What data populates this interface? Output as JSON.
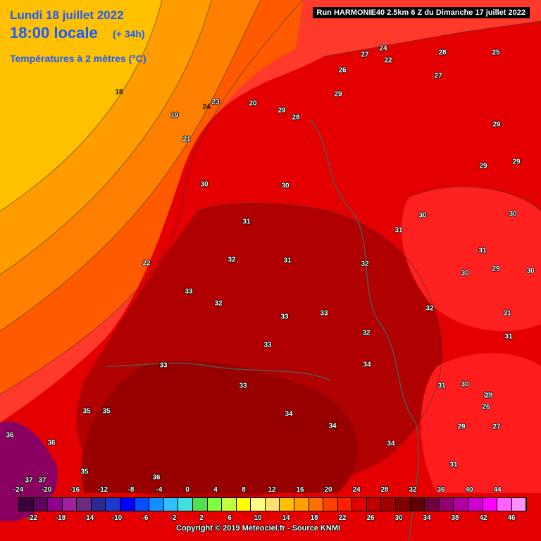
{
  "header": {
    "date": "Lundi 18 juillet 2022",
    "time": "18:00 locale",
    "offset": "(+ 34h)",
    "variable": "Températures à 2 mètres (°C)",
    "run": "Run HARMONIE40 2.5km 6 Z du Dimanche 17 juillet 2022"
  },
  "copyright": "Copyright © 2019 Meteociel.fr - Source KNMI",
  "colors": {
    "sea_cold": "#ffc000",
    "sea_mid": "#ff8c00",
    "land_hot": "#c00000",
    "land_very_hot": "#900000",
    "purple": "#800080",
    "title": "#1a5bff"
  },
  "scale": {
    "top_ticks": [
      "-24",
      "-20",
      "-16",
      "-12",
      "-8",
      "-4",
      "0",
      "4",
      "8",
      "12",
      "16",
      "20",
      "24",
      "28",
      "32",
      "36",
      "40",
      "44"
    ],
    "bottom_ticks": [
      "-22",
      "-18",
      "-14",
      "-10",
      "-6",
      "-2",
      "2",
      "6",
      "10",
      "14",
      "18",
      "22",
      "26",
      "30",
      "34",
      "38",
      "42",
      "46"
    ],
    "colors": [
      "#3a003a",
      "#600060",
      "#900090",
      "#a020a0",
      "#6a2a80",
      "#2a2a90",
      "#1c3ad0",
      "#0000ff",
      "#0050ff",
      "#1090ff",
      "#30c0ff",
      "#40e0e0",
      "#50e050",
      "#80ff40",
      "#c0ff40",
      "#ffff00",
      "#ffff80",
      "#ffe070",
      "#ffc000",
      "#ffa000",
      "#ff7000",
      "#ff4000",
      "#ff2000",
      "#e00000",
      "#c00000",
      "#a00000",
      "#800000",
      "#600000",
      "#700040",
      "#900070",
      "#b000a0",
      "#d000d0",
      "#ff00ff",
      "#ff60ff",
      "#ff90ff"
    ]
  },
  "temperature_labels": [
    {
      "t": "18"
    },
    {
      "t": "19"
    },
    {
      "t": "20"
    },
    {
      "t": "21"
    },
    {
      "t": "22"
    },
    {
      "t": "22"
    },
    {
      "t": "23"
    },
    {
      "t": "24"
    },
    {
      "t": "26"
    },
    {
      "t": "27"
    },
    {
      "t": "27"
    },
    {
      "t": "28"
    },
    {
      "t": "28"
    },
    {
      "t": "29"
    },
    {
      "t": "29"
    },
    {
      "t": "29"
    },
    {
      "t": "29"
    },
    {
      "t": "30"
    },
    {
      "t": "30"
    },
    {
      "t": "30"
    },
    {
      "t": "31"
    },
    {
      "t": "31"
    },
    {
      "t": "31"
    },
    {
      "t": "31"
    },
    {
      "t": "32"
    },
    {
      "t": "32"
    },
    {
      "t": "32"
    },
    {
      "t": "33"
    },
    {
      "t": "33"
    },
    {
      "t": "33"
    },
    {
      "t": "33"
    },
    {
      "t": "34"
    },
    {
      "t": "34"
    },
    {
      "t": "34"
    },
    {
      "t": "35"
    },
    {
      "t": "35"
    },
    {
      "t": "36"
    },
    {
      "t": "36"
    },
    {
      "t": "37"
    },
    {
      "t": "37"
    },
    {
      "t": "36"
    },
    {
      "t": "35"
    },
    {
      "t": "31"
    },
    {
      "t": "30"
    },
    {
      "t": "29"
    },
    {
      "t": "28"
    },
    {
      "t": "27"
    },
    {
      "t": "26"
    },
    {
      "t": "25"
    },
    {
      "t": "24"
    },
    {
      "t": "30"
    },
    {
      "t": "31"
    },
    {
      "t": "32"
    },
    {
      "t": "33"
    },
    {
      "t": "34"
    },
    {
      "t": "31"
    },
    {
      "t": "29"
    },
    {
      "t": "30"
    },
    {
      "t": "28"
    },
    {
      "t": "29"
    },
    {
      "t": "30"
    },
    {
      "t": "31"
    },
    {
      "t": "32"
    },
    {
      "t": "33"
    }
  ]
}
